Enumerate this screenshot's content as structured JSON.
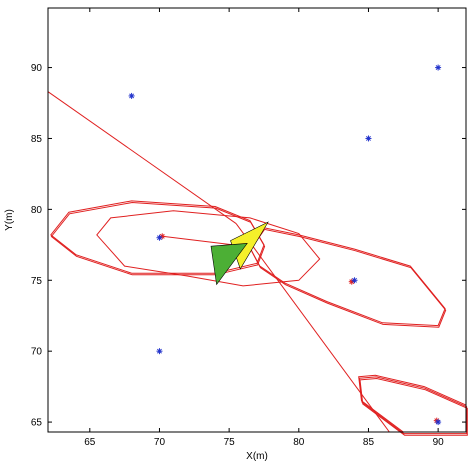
{
  "chart_data": {
    "type": "scatter",
    "xlabel": "X(m)",
    "ylabel": "Y(m)",
    "xlim": [
      62,
      92
    ],
    "ylim": [
      64.3,
      94.2
    ],
    "xticks": [
      "65",
      "70",
      "75",
      "80",
      "85",
      "90"
    ],
    "yticks": [
      "65",
      "70",
      "75",
      "80",
      "85",
      "90"
    ],
    "grid": false,
    "colors": {
      "landmark": "#2233cc",
      "estimate": "#e02020",
      "axis": "#000000",
      "robot_green": "#4caf35",
      "robot_yellow": "#f5f02a"
    },
    "landmarks": [
      {
        "x": 68,
        "y": 88
      },
      {
        "x": 85,
        "y": 85
      },
      {
        "x": 90,
        "y": 90
      },
      {
        "x": 70,
        "y": 78
      },
      {
        "x": 84,
        "y": 75
      },
      {
        "x": 70,
        "y": 70
      },
      {
        "x": 90,
        "y": 65
      }
    ],
    "landmark_estimates": [
      {
        "x": 70.2,
        "y": 78.1
      },
      {
        "x": 83.8,
        "y": 74.9
      },
      {
        "x": 89.9,
        "y": 65.1
      }
    ],
    "trajectory_lines": [
      [
        [
          62,
          88.3
        ],
        [
          75.5,
          79
        ]
      ],
      [
        [
          75.5,
          79
        ],
        [
          86.5,
          64.3
        ]
      ],
      [
        [
          70.2,
          78.1
        ],
        [
          75.3,
          77.5
        ]
      ]
    ],
    "ellipses": [
      {
        "lines": 2,
        "points": [
          [
            62.2,
            78.2
          ],
          [
            63.5,
            79.8
          ],
          [
            68,
            80.6
          ],
          [
            74,
            80.2
          ],
          [
            76.5,
            79.2
          ],
          [
            77.5,
            77.5
          ],
          [
            77,
            76.2
          ],
          [
            74,
            75.5
          ],
          [
            68,
            75.5
          ],
          [
            64,
            76.8
          ]
        ]
      },
      {
        "lines": 1,
        "points": [
          [
            65.5,
            78.2
          ],
          [
            66.5,
            79.4
          ],
          [
            71,
            79.9
          ],
          [
            76.5,
            79.4
          ],
          [
            80,
            78.3
          ],
          [
            81.5,
            76.5
          ],
          [
            80,
            75
          ],
          [
            76,
            74.6
          ],
          [
            72,
            75.3
          ],
          [
            67.5,
            76
          ]
        ]
      },
      {
        "lines": 2,
        "points": [
          [
            76.5,
            77.3
          ],
          [
            77.5,
            78.7
          ],
          [
            80,
            78.2
          ],
          [
            84,
            77.2
          ],
          [
            88,
            76
          ],
          [
            90.5,
            73
          ],
          [
            90,
            71.8
          ],
          [
            86,
            72
          ],
          [
            82,
            73.5
          ],
          [
            79,
            74.8
          ],
          [
            77.2,
            76
          ]
        ]
      },
      {
        "lines": 3,
        "points": [
          [
            84.3,
            68.2
          ],
          [
            85.5,
            68.3
          ],
          [
            89,
            67.5
          ],
          [
            92,
            66.2
          ],
          [
            92,
            64.3
          ],
          [
            87.5,
            64.3
          ],
          [
            84.5,
            66.5
          ]
        ]
      }
    ],
    "robot_poses": [
      {
        "color": "robot_yellow",
        "points": [
          [
            75.1,
            77.8
          ],
          [
            77.8,
            79.1
          ],
          [
            75.8,
            75.8
          ]
        ]
      },
      {
        "color": "robot_green",
        "points": [
          [
            73.7,
            77.4
          ],
          [
            76.3,
            77.6
          ],
          [
            74.1,
            74.7
          ]
        ]
      }
    ]
  }
}
